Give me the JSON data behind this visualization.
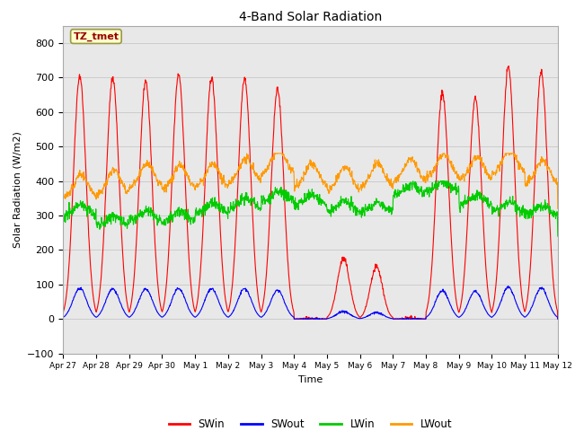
{
  "title": "4-Band Solar Radiation",
  "xlabel": "Time",
  "ylabel": "Solar Radiation (W/m2)",
  "ylim": [
    -100,
    850
  ],
  "annotation_text": "TZ_tmet",
  "legend_labels": [
    "SWin",
    "SWout",
    "LWin",
    "LWout"
  ],
  "legend_colors": [
    "#ff0000",
    "#0000ff",
    "#00cc00",
    "#ff9900"
  ],
  "grid_color": "#cccccc",
  "bg_color": "#e8e8e8",
  "xtick_labels": [
    "Apr 27",
    "Apr 28",
    "Apr 29",
    "Apr 30",
    "May 1",
    "May 2",
    "May 3",
    "May 4",
    "May 5",
    "May 6",
    "May 7",
    "May 8",
    "May 9",
    "May 10",
    "May 11",
    "May 12"
  ],
  "num_days": 15,
  "SW_peaks": [
    705,
    700,
    690,
    710,
    700,
    700,
    665,
    0,
    175,
    150,
    0,
    655,
    640,
    730,
    715
  ],
  "LW_base": [
    300,
    270,
    285,
    280,
    305,
    320,
    340,
    330,
    310,
    310,
    360,
    370,
    330,
    310,
    300
  ],
  "LWo_base": [
    350,
    360,
    380,
    375,
    380,
    395,
    420,
    380,
    370,
    380,
    395,
    410,
    400,
    420,
    390
  ],
  "yticks": [
    -100,
    0,
    100,
    200,
    300,
    400,
    500,
    600,
    700,
    800
  ]
}
